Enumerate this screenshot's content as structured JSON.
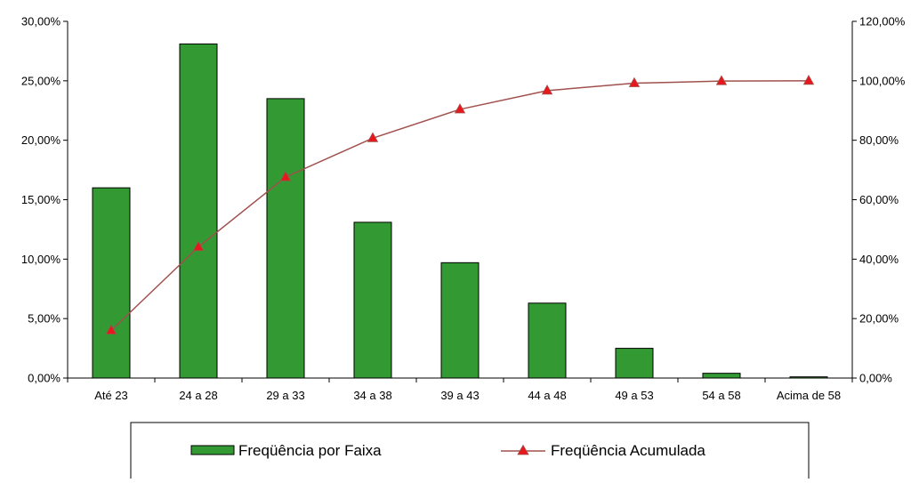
{
  "colors": {
    "bar_fill": "#339933",
    "bar_stroke": "#000000",
    "line": "#A0504D",
    "marker": "#E8171B"
  },
  "chart_data": {
    "type": "bar",
    "categories": [
      "Até 23",
      "24 a 28",
      "29 a 33",
      "34 a 38",
      "39 a 43",
      "44 a 48",
      "49 a 53",
      "54 a 58",
      "Acima de 58"
    ],
    "y_left_ticks": [
      "0,00%",
      "5,00%",
      "10,00%",
      "15,00%",
      "20,00%",
      "25,00%",
      "30,00%"
    ],
    "y_right_ticks": [
      "0,00%",
      "20,00%",
      "40,00%",
      "60,00%",
      "80,00%",
      "100,00%",
      "120,00%"
    ],
    "ylim_left": [
      0,
      30
    ],
    "ylim_right": [
      0,
      120
    ],
    "grid": false,
    "legend_position": "bottom",
    "series": [
      {
        "name": "Freqüência por Faixa",
        "type": "bar",
        "axis": "left",
        "values": [
          16.0,
          28.1,
          23.5,
          13.1,
          9.7,
          6.3,
          2.5,
          0.4,
          0.1
        ]
      },
      {
        "name": "Freqüência Acumulada",
        "type": "line",
        "axis": "right",
        "values": [
          16.0,
          44.1,
          67.6,
          80.7,
          90.4,
          96.7,
          99.2,
          99.9,
          100.0
        ]
      }
    ]
  }
}
